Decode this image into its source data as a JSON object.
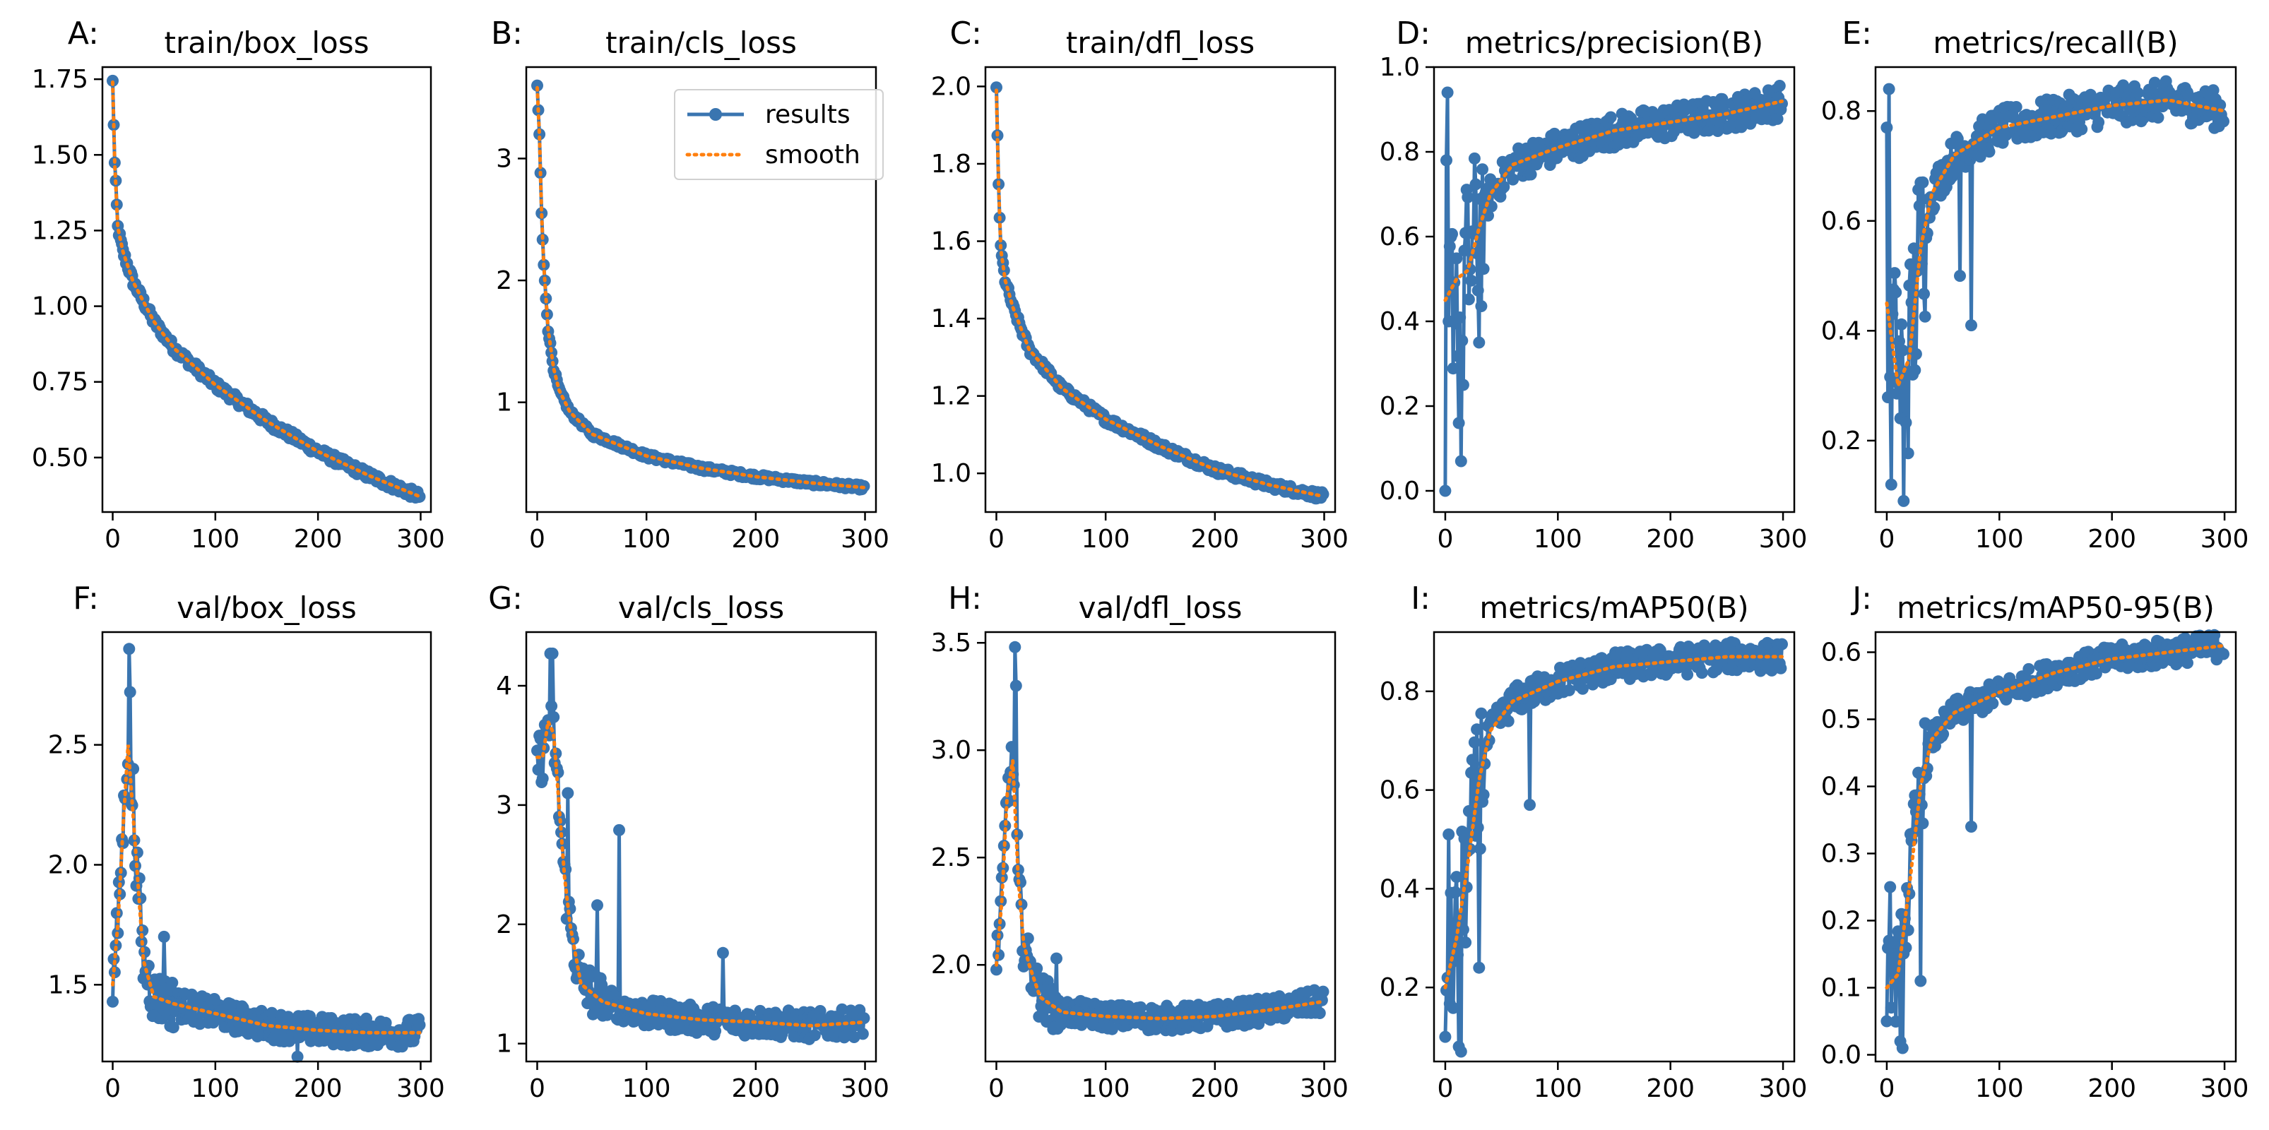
{
  "figure": {
    "legend_entries": [
      "results",
      "smooth"
    ]
  },
  "colors": {
    "results": "#3a75b0",
    "smooth": "#ff7f0e",
    "axis": "#000000"
  },
  "chart_data": [
    {
      "letter": "A:",
      "title": "train/box_loss",
      "type": "line",
      "kind": "decay",
      "xlim": [
        -10,
        310
      ],
      "ylim": [
        0.32,
        1.79
      ],
      "xticks": [
        0,
        100,
        200,
        300
      ],
      "xtick_labels": [
        "0",
        "100",
        "200",
        "300"
      ],
      "yticks": [
        0.5,
        0.75,
        1.0,
        1.25,
        1.5,
        1.75
      ],
      "ytick_labels": [
        "0.50",
        "0.75",
        "1.00",
        "1.25",
        "1.50",
        "1.75"
      ],
      "anchors": [
        [
          0,
          1.74
        ],
        [
          2,
          1.47
        ],
        [
          5,
          1.26
        ],
        [
          10,
          1.18
        ],
        [
          20,
          1.08
        ],
        [
          40,
          0.95
        ],
        [
          60,
          0.86
        ],
        [
          100,
          0.74
        ],
        [
          150,
          0.62
        ],
        [
          200,
          0.52
        ],
        [
          250,
          0.44
        ],
        [
          300,
          0.37
        ]
      ],
      "noise": 0.015
    },
    {
      "letter": "B:",
      "title": "train/cls_loss",
      "type": "line",
      "kind": "decay",
      "xlim": [
        -10,
        310
      ],
      "ylim": [
        0.1,
        3.75
      ],
      "xticks": [
        0,
        100,
        200,
        300
      ],
      "xtick_labels": [
        "0",
        "100",
        "200",
        "300"
      ],
      "yticks": [
        1,
        2,
        3
      ],
      "ytick_labels": [
        "1",
        "2",
        "3"
      ],
      "anchors": [
        [
          0,
          3.58
        ],
        [
          2,
          3.2
        ],
        [
          4,
          2.55
        ],
        [
          6,
          2.12
        ],
        [
          10,
          1.6
        ],
        [
          15,
          1.28
        ],
        [
          20,
          1.1
        ],
        [
          30,
          0.92
        ],
        [
          50,
          0.74
        ],
        [
          100,
          0.56
        ],
        [
          150,
          0.46
        ],
        [
          200,
          0.39
        ],
        [
          250,
          0.34
        ],
        [
          300,
          0.3
        ]
      ],
      "noise": 0.02
    },
    {
      "letter": "C:",
      "title": "train/dfl_loss",
      "type": "line",
      "kind": "decay",
      "xlim": [
        -10,
        310
      ],
      "ylim": [
        0.9,
        2.05
      ],
      "xticks": [
        0,
        100,
        200,
        300
      ],
      "xtick_labels": [
        "0",
        "100",
        "200",
        "300"
      ],
      "yticks": [
        1.0,
        1.2,
        1.4,
        1.6,
        1.8,
        2.0
      ],
      "ytick_labels": [
        "1.0",
        "1.2",
        "1.4",
        "1.6",
        "1.8",
        "2.0"
      ],
      "anchors": [
        [
          0,
          1.99
        ],
        [
          2,
          1.75
        ],
        [
          4,
          1.58
        ],
        [
          8,
          1.5
        ],
        [
          15,
          1.43
        ],
        [
          30,
          1.32
        ],
        [
          60,
          1.22
        ],
        [
          100,
          1.14
        ],
        [
          150,
          1.07
        ],
        [
          200,
          1.01
        ],
        [
          250,
          0.97
        ],
        [
          300,
          0.94
        ]
      ],
      "noise": 0.01
    },
    {
      "letter": "D:",
      "title": "metrics/precision(B)",
      "type": "line",
      "kind": "rise",
      "xlim": [
        -10,
        310
      ],
      "ylim": [
        -0.05,
        1.0
      ],
      "xticks": [
        0,
        100,
        200,
        300
      ],
      "xtick_labels": [
        "0",
        "100",
        "200",
        "300"
      ],
      "yticks": [
        0.0,
        0.2,
        0.4,
        0.6,
        0.8,
        1.0
      ],
      "ytick_labels": [
        "0.0",
        "0.2",
        "0.4",
        "0.6",
        "0.8",
        "1.0"
      ],
      "anchors": [
        [
          0,
          0.45
        ],
        [
          10,
          0.5
        ],
        [
          20,
          0.52
        ],
        [
          30,
          0.62
        ],
        [
          40,
          0.7
        ],
        [
          60,
          0.77
        ],
        [
          100,
          0.81
        ],
        [
          150,
          0.85
        ],
        [
          200,
          0.87
        ],
        [
          250,
          0.89
        ],
        [
          300,
          0.92
        ]
      ],
      "noise": 0.04,
      "early_noise": 0.22,
      "fixed": [
        [
          0,
          0.0
        ],
        [
          1,
          0.78
        ],
        [
          2,
          0.94
        ],
        [
          3,
          0.4
        ],
        [
          12,
          0.16
        ],
        [
          14,
          0.07
        ],
        [
          16,
          0.25
        ],
        [
          30,
          0.35
        ]
      ]
    },
    {
      "letter": "E:",
      "title": "metrics/recall(B)",
      "type": "line",
      "kind": "rise",
      "xlim": [
        -10,
        310
      ],
      "ylim": [
        0.07,
        0.88
      ],
      "xticks": [
        0,
        100,
        200,
        300
      ],
      "xtick_labels": [
        "0",
        "100",
        "200",
        "300"
      ],
      "yticks": [
        0.2,
        0.4,
        0.6,
        0.8
      ],
      "ytick_labels": [
        "0.2",
        "0.4",
        "0.6",
        "0.8"
      ],
      "anchors": [
        [
          0,
          0.45
        ],
        [
          10,
          0.3
        ],
        [
          20,
          0.35
        ],
        [
          30,
          0.55
        ],
        [
          40,
          0.65
        ],
        [
          60,
          0.72
        ],
        [
          100,
          0.77
        ],
        [
          150,
          0.79
        ],
        [
          200,
          0.81
        ],
        [
          250,
          0.82
        ],
        [
          300,
          0.8
        ]
      ],
      "noise": 0.035,
      "early_noise": 0.18,
      "fixed": [
        [
          0,
          0.77
        ],
        [
          2,
          0.84
        ],
        [
          4,
          0.12
        ],
        [
          8,
          0.47
        ],
        [
          15,
          0.09
        ],
        [
          65,
          0.5
        ],
        [
          75,
          0.41
        ]
      ]
    },
    {
      "letter": "F:",
      "title": "val/box_loss",
      "type": "line",
      "kind": "peak",
      "xlim": [
        -10,
        310
      ],
      "ylim": [
        1.18,
        2.97
      ],
      "xticks": [
        0,
        100,
        200,
        300
      ],
      "xtick_labels": [
        "0",
        "100",
        "200",
        "300"
      ],
      "yticks": [
        1.5,
        2.0,
        2.5
      ],
      "ytick_labels": [
        "1.5",
        "2.0",
        "2.5"
      ],
      "anchors": [
        [
          0,
          1.5
        ],
        [
          5,
          1.75
        ],
        [
          10,
          2.15
        ],
        [
          15,
          2.5
        ],
        [
          20,
          2.2
        ],
        [
          25,
          1.9
        ],
        [
          30,
          1.6
        ],
        [
          40,
          1.45
        ],
        [
          60,
          1.42
        ],
        [
          100,
          1.38
        ],
        [
          150,
          1.33
        ],
        [
          200,
          1.31
        ],
        [
          250,
          1.3
        ],
        [
          300,
          1.3
        ]
      ],
      "noise": 0.06,
      "fixed": [
        [
          16,
          2.9
        ],
        [
          17,
          2.72
        ],
        [
          20,
          2.4
        ],
        [
          50,
          1.7
        ],
        [
          180,
          1.2
        ]
      ]
    },
    {
      "letter": "G:",
      "title": "val/cls_loss",
      "type": "line",
      "kind": "peak",
      "xlim": [
        -10,
        310
      ],
      "ylim": [
        0.85,
        4.45
      ],
      "xticks": [
        0,
        100,
        200,
        300
      ],
      "xtick_labels": [
        "0",
        "100",
        "200",
        "300"
      ],
      "yticks": [
        1,
        2,
        3,
        4
      ],
      "ytick_labels": [
        "1",
        "2",
        "3",
        "4"
      ],
      "anchors": [
        [
          0,
          3.4
        ],
        [
          5,
          3.4
        ],
        [
          10,
          3.7
        ],
        [
          15,
          3.6
        ],
        [
          20,
          3.0
        ],
        [
          25,
          2.4
        ],
        [
          30,
          2.0
        ],
        [
          40,
          1.5
        ],
        [
          60,
          1.35
        ],
        [
          100,
          1.25
        ],
        [
          150,
          1.2
        ],
        [
          200,
          1.18
        ],
        [
          250,
          1.15
        ],
        [
          300,
          1.18
        ]
      ],
      "noise": 0.12,
      "fixed": [
        [
          12,
          4.27
        ],
        [
          14,
          4.27
        ],
        [
          28,
          3.1
        ],
        [
          55,
          2.16
        ],
        [
          75,
          2.79
        ],
        [
          170,
          1.76
        ]
      ]
    },
    {
      "letter": "H:",
      "title": "val/dfl_loss",
      "type": "line",
      "kind": "peak",
      "xlim": [
        -10,
        310
      ],
      "ylim": [
        1.55,
        3.55
      ],
      "xticks": [
        0,
        100,
        200,
        300
      ],
      "xtick_labels": [
        "0",
        "100",
        "200",
        "300"
      ],
      "yticks": [
        2.0,
        2.5,
        3.0,
        3.5
      ],
      "ytick_labels": [
        "2.0",
        "2.5",
        "3.0",
        "3.5"
      ],
      "anchors": [
        [
          0,
          2.0
        ],
        [
          5,
          2.3
        ],
        [
          10,
          2.8
        ],
        [
          15,
          2.95
        ],
        [
          20,
          2.4
        ],
        [
          25,
          2.1
        ],
        [
          30,
          2.0
        ],
        [
          40,
          1.85
        ],
        [
          60,
          1.78
        ],
        [
          100,
          1.76
        ],
        [
          150,
          1.75
        ],
        [
          200,
          1.76
        ],
        [
          250,
          1.79
        ],
        [
          300,
          1.83
        ]
      ],
      "noise": 0.06,
      "fixed": [
        [
          17,
          3.48
        ],
        [
          18,
          3.3
        ],
        [
          55,
          2.03
        ]
      ]
    },
    {
      "letter": "I:",
      "title": "metrics/mAP50(B)",
      "type": "line",
      "kind": "rise",
      "xlim": [
        -10,
        310
      ],
      "ylim": [
        0.05,
        0.92
      ],
      "xticks": [
        0,
        100,
        200,
        300
      ],
      "xtick_labels": [
        "0",
        "100",
        "200",
        "300"
      ],
      "yticks": [
        0.2,
        0.4,
        0.6,
        0.8
      ],
      "ytick_labels": [
        "0.2",
        "0.4",
        "0.6",
        "0.8"
      ],
      "anchors": [
        [
          0,
          0.2
        ],
        [
          10,
          0.3
        ],
        [
          20,
          0.45
        ],
        [
          30,
          0.62
        ],
        [
          40,
          0.72
        ],
        [
          60,
          0.78
        ],
        [
          100,
          0.82
        ],
        [
          150,
          0.85
        ],
        [
          200,
          0.86
        ],
        [
          250,
          0.87
        ],
        [
          300,
          0.87
        ]
      ],
      "noise": 0.03,
      "early_noise": 0.15,
      "fixed": [
        [
          0,
          0.1
        ],
        [
          3,
          0.51
        ],
        [
          12,
          0.08
        ],
        [
          14,
          0.07
        ],
        [
          30,
          0.24
        ],
        [
          75,
          0.57
        ]
      ]
    },
    {
      "letter": "J:",
      "title": "metrics/mAP50-95(B)",
      "type": "line",
      "kind": "rise",
      "xlim": [
        -10,
        310
      ],
      "ylim": [
        -0.01,
        0.63
      ],
      "xticks": [
        0,
        100,
        200,
        300
      ],
      "xtick_labels": [
        "0",
        "100",
        "200",
        "300"
      ],
      "yticks": [
        0.0,
        0.1,
        0.2,
        0.3,
        0.4,
        0.5,
        0.6
      ],
      "ytick_labels": [
        "0.0",
        "0.1",
        "0.2",
        "0.3",
        "0.4",
        "0.5",
        "0.6"
      ],
      "anchors": [
        [
          0,
          0.1
        ],
        [
          10,
          0.12
        ],
        [
          20,
          0.25
        ],
        [
          30,
          0.4
        ],
        [
          40,
          0.47
        ],
        [
          60,
          0.51
        ],
        [
          100,
          0.54
        ],
        [
          150,
          0.57
        ],
        [
          200,
          0.59
        ],
        [
          250,
          0.6
        ],
        [
          300,
          0.61
        ]
      ],
      "noise": 0.02,
      "early_noise": 0.07,
      "fixed": [
        [
          0,
          0.05
        ],
        [
          3,
          0.25
        ],
        [
          12,
          0.02
        ],
        [
          14,
          0.01
        ],
        [
          30,
          0.11
        ],
        [
          75,
          0.34
        ]
      ]
    }
  ]
}
